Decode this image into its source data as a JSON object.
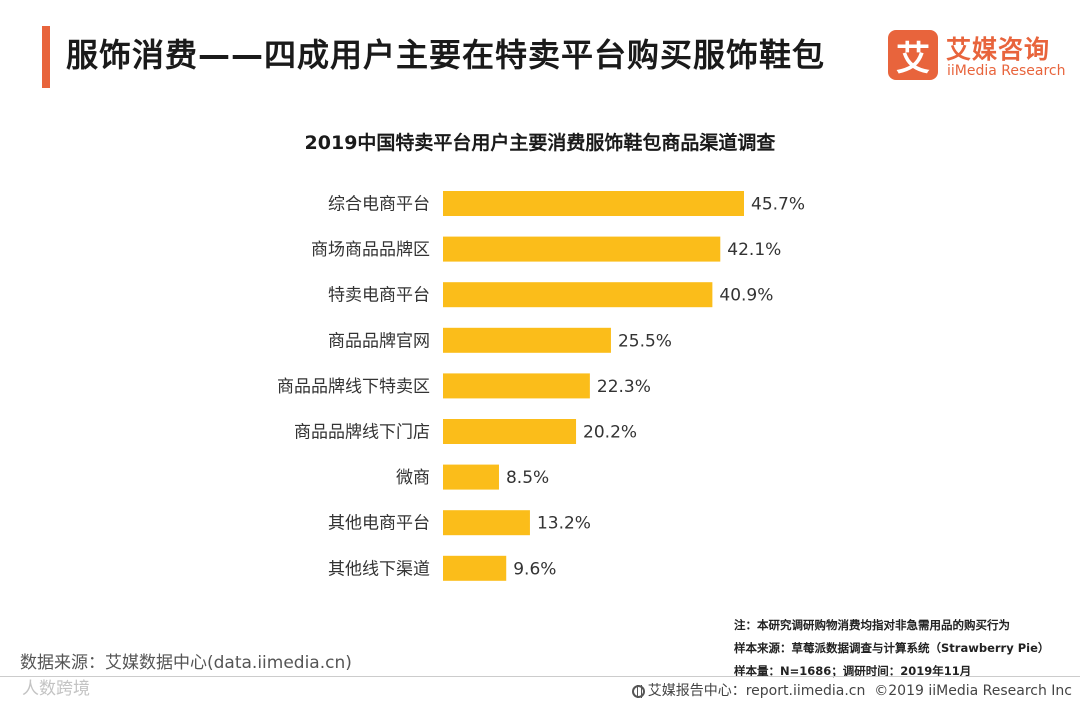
{
  "header": {
    "title": "服饰消费——四成用户主要在特卖平台购买服饰鞋包",
    "logo_mark": "艾",
    "logo_cn": "艾媒咨询",
    "logo_en": "iiMedia Research"
  },
  "colors": {
    "accent": "#e8643c",
    "bar": "#fbbd1a"
  },
  "chart_data": {
    "type": "bar",
    "orientation": "horizontal",
    "title": "2019中国特卖平台用户主要消费服饰鞋包商品渠道调查",
    "xlabel": "",
    "ylabel": "",
    "unit": "%",
    "xlim": [
      0,
      50
    ],
    "categories": [
      "综合电商平台",
      "商场商品品牌区",
      "特卖电商平台",
      "商品品牌官网",
      "商品品牌线下特卖区",
      "商品品牌线下门店",
      "微商",
      "其他电商平台",
      "其他线下渠道"
    ],
    "values": [
      45.7,
      42.1,
      40.9,
      25.5,
      22.3,
      20.2,
      8.5,
      13.2,
      9.6
    ],
    "value_labels": [
      "45.7%",
      "42.1%",
      "40.9%",
      "25.5%",
      "22.3%",
      "20.2%",
      "8.5%",
      "13.2%",
      "9.6%"
    ]
  },
  "notes": {
    "note": "注：本研究调研购物消费均指对非急需用品的购买行为",
    "sample_source": "样本来源：草莓派数据调查与计算系统（Strawberry Pie）",
    "sample_size": "样本量：N=1686；调研时间：2019年11月"
  },
  "source": "数据来源：艾媒数据中心(data.iimedia.cn)",
  "watermark": "人数跨境",
  "footer": {
    "report_center": "艾媒报告中心：report.iimedia.cn",
    "copyright": "©2019  iiMedia Research  Inc"
  }
}
